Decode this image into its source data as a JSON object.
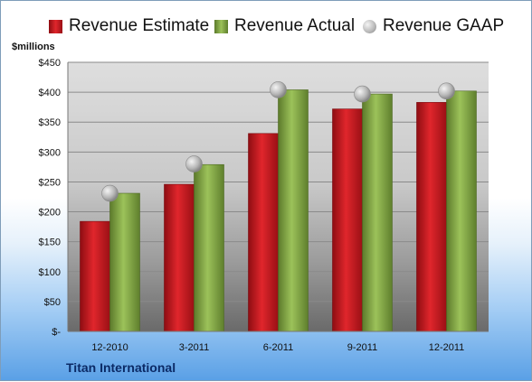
{
  "chart_data": {
    "type": "bar",
    "categories": [
      "12-2010",
      "3-2011",
      "6-2011",
      "9-2011",
      "12-2011"
    ],
    "series": [
      {
        "name": "Revenue Estimate",
        "values": [
          184,
          246,
          331,
          372,
          383
        ],
        "color": "#c0141c"
      },
      {
        "name": "Revenue Actual",
        "values": [
          231,
          279,
          404,
          397,
          402
        ],
        "color": "#7fa141"
      },
      {
        "name": "Revenue GAAP",
        "values": [
          231,
          280,
          404,
          397,
          402
        ],
        "color": "#bcbcbc",
        "marker": "sphere"
      }
    ],
    "ylabel": "$millions",
    "ylim": [
      0,
      450
    ],
    "yticks": [
      0,
      50,
      100,
      150,
      200,
      250,
      300,
      350,
      400,
      450
    ],
    "ytick_labels": [
      "$-",
      "$50",
      "$100",
      "$150",
      "$200",
      "$250",
      "$300",
      "$350",
      "$400",
      "$450"
    ],
    "grid": true,
    "legend": "top"
  },
  "footer": {
    "company": "Titan International"
  }
}
